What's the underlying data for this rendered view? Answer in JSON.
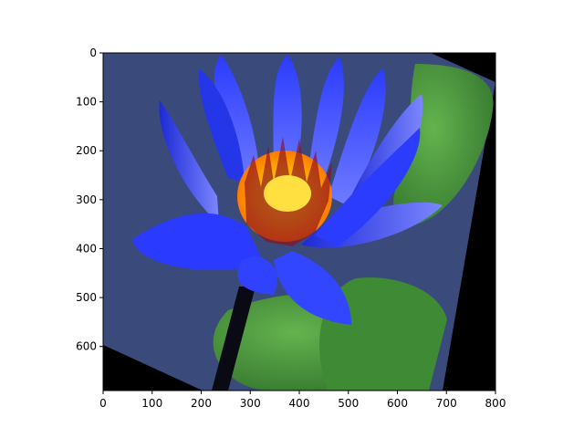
{
  "image": {
    "description_icon": "blue-water-lily-icon",
    "colors": {
      "background": "#000000",
      "water": "#3a4a7a",
      "leaf": "#4e9a3a",
      "leaf_dark": "#2f6e2a",
      "petal": "#2a3bff",
      "petal_light": "#6f7bff",
      "center": "#ffb400",
      "center_hot": "#ffe040",
      "stamen": "#8a1020"
    }
  },
  "axes": {
    "x_ticks": [
      "0",
      "100",
      "200",
      "300",
      "400",
      "500",
      "600",
      "700",
      "800"
    ],
    "y_ticks": [
      "0",
      "100",
      "200",
      "300",
      "400",
      "500",
      "600"
    ],
    "xlim": [
      0,
      800
    ],
    "ylim": [
      690,
      0
    ]
  }
}
